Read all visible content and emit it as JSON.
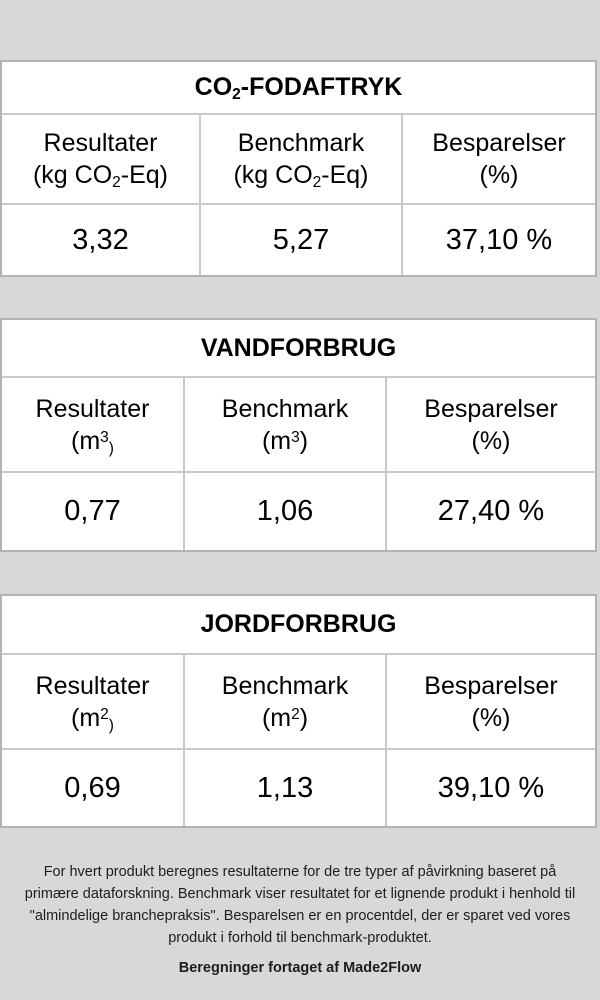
{
  "colors": {
    "page_background": "#d8d8d8",
    "card_background": "#ffffff",
    "card_border": "#b3b3b3",
    "cell_border": "#c9c9c9",
    "table_text": "#000000",
    "footer_text": "#1d1d1d"
  },
  "tables": [
    {
      "title": {
        "pre": "CO",
        "sub": "2",
        "post": "-FODAFTRYK"
      },
      "headers": [
        {
          "label": "Resultater",
          "unit": {
            "pre": "(kg CO",
            "sup": "",
            "sub": "2",
            "post": "-Eq)"
          }
        },
        {
          "label": "Benchmark",
          "unit": {
            "pre": "(kg CO",
            "sup": "",
            "sub": "2",
            "post": "-Eq)"
          }
        },
        {
          "label": "Besparelser",
          "unit": {
            "pre": "(%)",
            "sup": "",
            "sub": "",
            "post": ""
          }
        }
      ],
      "values": [
        "3,32",
        "5,27",
        "37,10 %"
      ]
    },
    {
      "title": {
        "pre": "VANDFORBRUG",
        "sub": "",
        "post": ""
      },
      "headers": [
        {
          "label": "Resultater",
          "unit": {
            "pre": "(m",
            "sup": "3",
            "sub": ")",
            "post": ""
          }
        },
        {
          "label": "Benchmark",
          "unit": {
            "pre": "(m",
            "sup": "3",
            "sub": "",
            "post": ")"
          }
        },
        {
          "label": "Besparelser",
          "unit": {
            "pre": "(%)",
            "sup": "",
            "sub": "",
            "post": ""
          }
        }
      ],
      "values": [
        "0,77",
        "1,06",
        "27,40 %"
      ]
    },
    {
      "title": {
        "pre": "JORDFORBRUG",
        "sub": "",
        "post": ""
      },
      "headers": [
        {
          "label": "Resultater",
          "unit": {
            "pre": "(m",
            "sup": "2",
            "sub": ")",
            "post": ""
          }
        },
        {
          "label": "Benchmark",
          "unit": {
            "pre": "(m",
            "sup": "2",
            "sub": "",
            "post": ")"
          }
        },
        {
          "label": "Besparelser",
          "unit": {
            "pre": "(%)",
            "sup": "",
            "sub": "",
            "post": ""
          }
        }
      ],
      "values": [
        "0,69",
        "1,13",
        "39,10 %"
      ]
    }
  ],
  "footer": {
    "description": "For hvert produkt beregnes resultaterne for de tre typer af påvirkning baseret på primære dataforskning. Benchmark viser resultatet for et lignende produkt i henhold til \"almindelige branchepraksis\". Besparelsen er en procentdel, der er sparet ved vores produkt i forhold til benchmark-produktet.",
    "credit": "Beregninger fortaget af Made2Flow"
  }
}
